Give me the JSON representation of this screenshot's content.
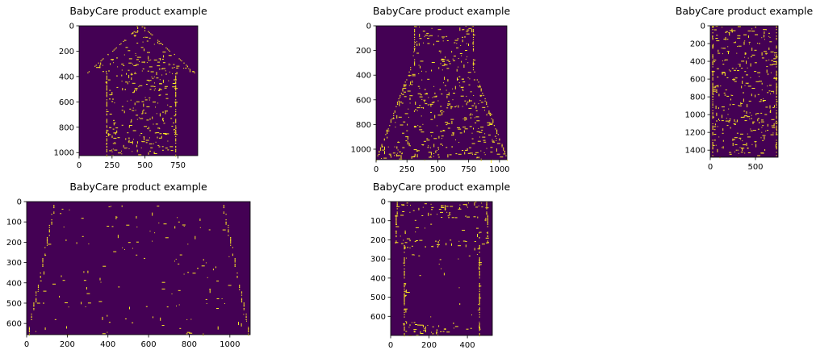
{
  "chart_data": [
    {
      "type": "heatmap",
      "title": "BabyCare product example",
      "image_width": 900,
      "image_height": 1024,
      "xticks": [
        0,
        250,
        500,
        750
      ],
      "yticks": [
        0,
        200,
        400,
        600,
        800,
        1000
      ],
      "colors": {
        "background": "#440154",
        "edge": "#fde725"
      },
      "shape": "shirt"
    },
    {
      "type": "heatmap",
      "title": "BabyCare product example",
      "image_width": 1060,
      "image_height": 1085,
      "xticks": [
        0,
        250,
        500,
        750,
        1000
      ],
      "yticks": [
        0,
        200,
        400,
        600,
        800,
        1000
      ],
      "colors": {
        "background": "#440154",
        "edge": "#fde725"
      },
      "shape": "dress"
    },
    {
      "type": "heatmap",
      "title": "BabyCare product example",
      "image_width": 750,
      "image_height": 1480,
      "xticks": [
        0,
        500
      ],
      "yticks": [
        0,
        200,
        400,
        600,
        800,
        1000,
        1200,
        1400
      ],
      "colors": {
        "background": "#440154",
        "edge": "#fde725"
      },
      "shape": "blanket"
    },
    {
      "type": "heatmap",
      "title": "BabyCare product example",
      "image_width": 1100,
      "image_height": 655,
      "xticks": [
        0,
        200,
        400,
        600,
        800,
        1000
      ],
      "yticks": [
        0,
        100,
        200,
        300,
        400,
        500,
        600
      ],
      "colors": {
        "background": "#440154",
        "edge": "#fde725"
      },
      "shape": "pants"
    },
    {
      "type": "heatmap",
      "title": "BabyCare product example",
      "image_width": 530,
      "image_height": 700,
      "xticks": [
        0,
        200,
        400
      ],
      "yticks": [
        0,
        100,
        200,
        300,
        400,
        500,
        600
      ],
      "colors": {
        "background": "#440154",
        "edge": "#fde725"
      },
      "shape": "bodysuit"
    }
  ]
}
